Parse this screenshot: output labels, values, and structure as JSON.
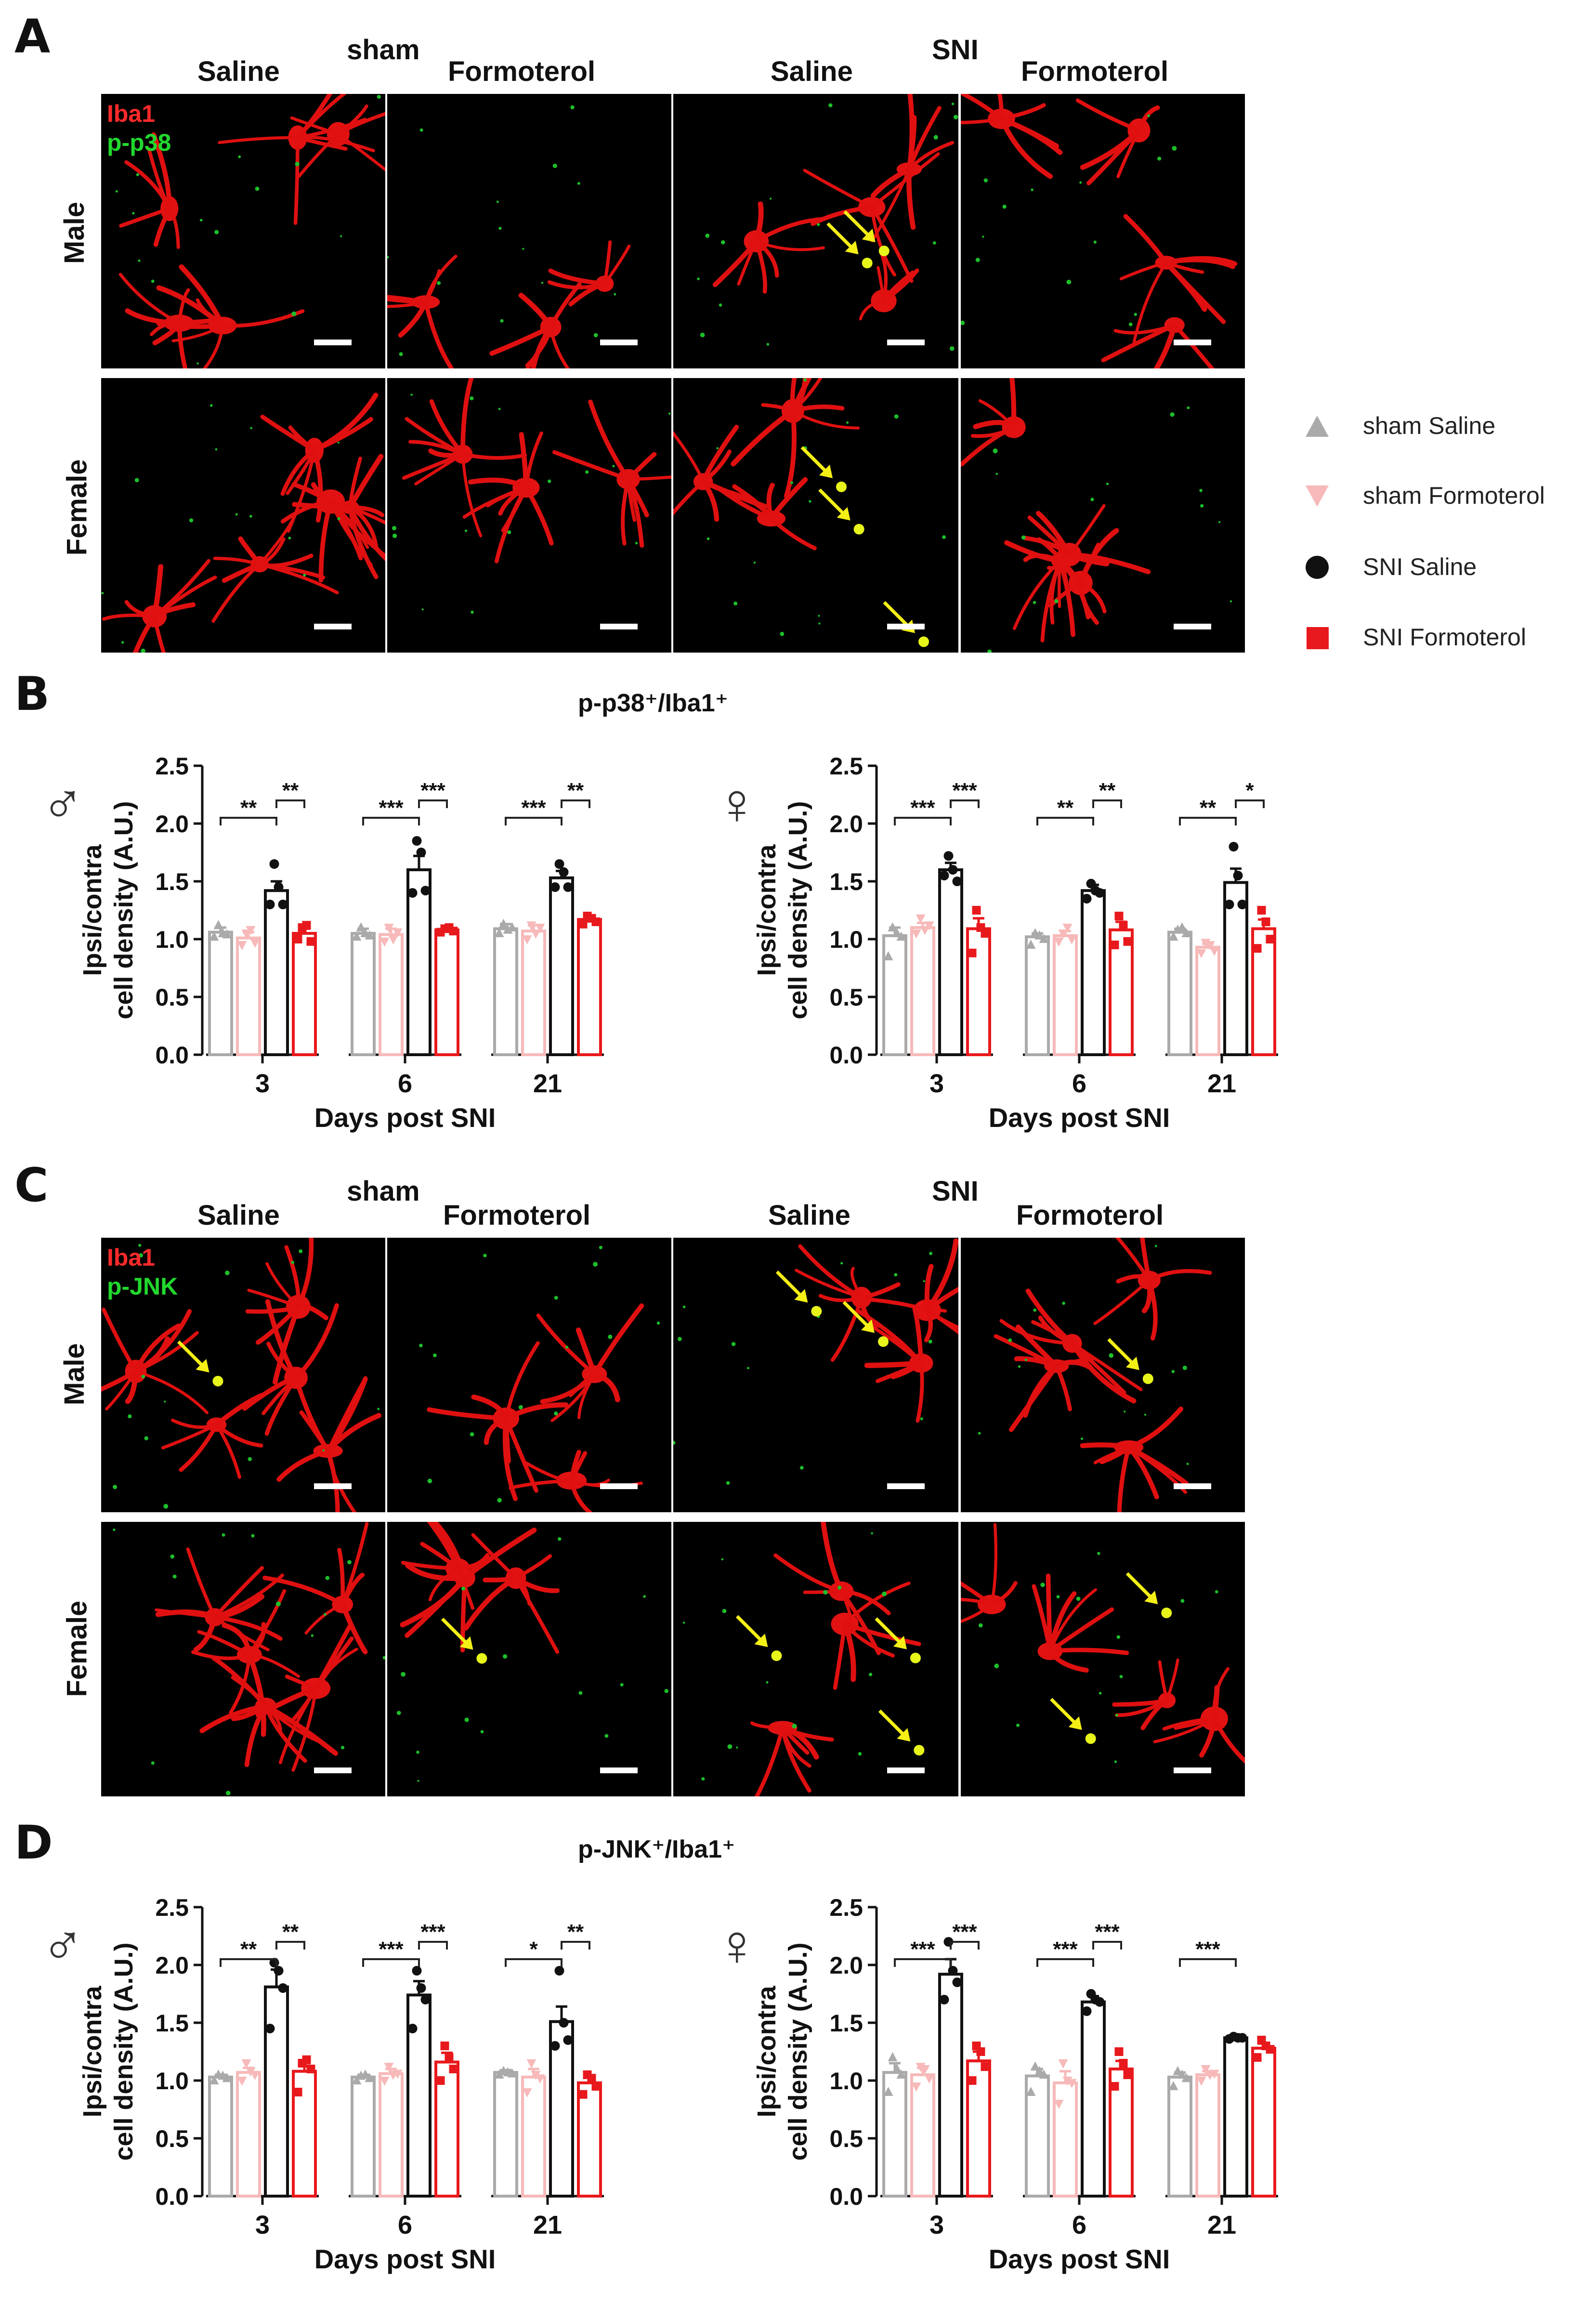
{
  "panels": {
    "A": {
      "letter": "A",
      "group_sham": "sham",
      "group_sni": "SNI",
      "col_labels": [
        "Saline",
        "Formoterol",
        "Saline",
        "Formoterol"
      ],
      "row_labels": [
        "Male",
        "Female"
      ],
      "stain_red": "Iba1",
      "stain_green": "p-p38"
    },
    "B": {
      "letter": "B",
      "title": "p-p38⁺/Iba1⁺"
    },
    "C": {
      "letter": "C",
      "group_sham": "sham",
      "group_sni": "SNI",
      "col_labels": [
        "Saline",
        "Formoterol",
        "Saline",
        "Formoterol"
      ],
      "row_labels": [
        "Male",
        "Female"
      ],
      "stain_red": "Iba1",
      "stain_green": "p-JNK"
    },
    "D": {
      "letter": "D",
      "title": "p-JNK⁺/Iba1⁺"
    }
  },
  "legend": {
    "items": [
      {
        "label": "sham Saline",
        "color": "#aaaaaa",
        "marker": "triangle-up"
      },
      {
        "label": "sham Formoterol",
        "color": "#f7b9b9",
        "marker": "triangle-down"
      },
      {
        "label": "SNI Saline",
        "color": "#111111",
        "marker": "circle"
      },
      {
        "label": "SNI Formoterol",
        "color": "#e8191c",
        "marker": "square"
      }
    ]
  },
  "chart_data": [
    {
      "id": "B-male",
      "type": "bar",
      "sex_symbol": "♂",
      "ylabel_line1": "Ipsi/contra",
      "ylabel_line2": "cell density (A.U.)",
      "xlabel": "Days post SNI",
      "ylim": [
        0,
        2.5
      ],
      "yticks": [
        "0.0",
        "0.5",
        "1.0",
        "1.5",
        "2.0",
        "2.5"
      ],
      "categories": [
        "3",
        "6",
        "21"
      ],
      "series": [
        {
          "name": "sham Saline",
          "values": [
            1.06,
            1.05,
            1.09
          ],
          "sem": [
            0.04,
            0.04,
            0.04
          ],
          "points": [
            [
              1.02,
              1.12,
              1.05,
              1.04
            ],
            [
              1.02,
              1.1,
              1.05,
              1.03
            ],
            [
              1.05,
              1.13,
              1.08,
              1.1
            ]
          ]
        },
        {
          "name": "sham Formoterol",
          "values": [
            1.01,
            1.04,
            1.07
          ],
          "sem": [
            0.05,
            0.05,
            0.05
          ],
          "points": [
            [
              0.95,
              1.05,
              1.08,
              0.97
            ],
            [
              0.98,
              1.1,
              1.0,
              1.06
            ],
            [
              1.0,
              1.12,
              1.05,
              1.1
            ]
          ]
        },
        {
          "name": "SNI Saline",
          "values": [
            1.42,
            1.6,
            1.53
          ],
          "sem": [
            0.08,
            0.12,
            0.06
          ],
          "points": [
            [
              1.3,
              1.65,
              1.45,
              1.3
            ],
            [
              1.4,
              1.85,
              1.75,
              1.42
            ],
            [
              1.45,
              1.65,
              1.58,
              1.45
            ]
          ]
        },
        {
          "name": "SNI Formoterol",
          "values": [
            1.05,
            1.08,
            1.17
          ],
          "sem": [
            0.04,
            0.02,
            0.03
          ],
          "points": [
            [
              1.0,
              1.1,
              1.12,
              0.98
            ],
            [
              1.06,
              1.09,
              1.1,
              1.07
            ],
            [
              1.13,
              1.2,
              1.18,
              1.15
            ]
          ]
        }
      ],
      "significance": [
        {
          "cat": 0,
          "from": 0,
          "to": 2,
          "label": "**"
        },
        {
          "cat": 0,
          "from": 2,
          "to": 3,
          "label": "**"
        },
        {
          "cat": 1,
          "from": 0,
          "to": 2,
          "label": "***"
        },
        {
          "cat": 1,
          "from": 2,
          "to": 3,
          "label": "***"
        },
        {
          "cat": 2,
          "from": 0,
          "to": 2,
          "label": "***"
        },
        {
          "cat": 2,
          "from": 2,
          "to": 3,
          "label": "**"
        }
      ]
    },
    {
      "id": "B-female",
      "type": "bar",
      "sex_symbol": "♀",
      "ylabel_line1": "Ipsi/contra",
      "ylabel_line2": "cell density (A.U.)",
      "xlabel": "Days post SNI",
      "ylim": [
        0,
        2.5
      ],
      "yticks": [
        "0.0",
        "0.5",
        "1.0",
        "1.5",
        "2.0",
        "2.5"
      ],
      "categories": [
        "3",
        "6",
        "21"
      ],
      "series": [
        {
          "name": "sham Saline",
          "values": [
            1.03,
            1.02,
            1.06
          ],
          "sem": [
            0.07,
            0.03,
            0.03
          ],
          "points": [
            [
              0.85,
              1.1,
              1.05,
              1.02
            ],
            [
              0.95,
              1.05,
              1.03,
              1.0
            ],
            [
              1.02,
              1.08,
              1.1,
              1.05
            ]
          ]
        },
        {
          "name": "sham Formoterol",
          "values": [
            1.1,
            1.03,
            0.93
          ],
          "sem": [
            0.04,
            0.04,
            0.03
          ],
          "points": [
            [
              1.05,
              1.18,
              1.08,
              1.12
            ],
            [
              0.98,
              1.05,
              1.1,
              1.0
            ],
            [
              0.88,
              0.97,
              0.95,
              0.9
            ]
          ]
        },
        {
          "name": "SNI Saline",
          "values": [
            1.6,
            1.42,
            1.49
          ],
          "sem": [
            0.06,
            0.05,
            0.12
          ],
          "points": [
            [
              1.55,
              1.72,
              1.6,
              1.5
            ],
            [
              1.35,
              1.48,
              1.42,
              1.4
            ],
            [
              1.3,
              1.8,
              1.55,
              1.3
            ]
          ]
        },
        {
          "name": "SNI Formoterol",
          "values": [
            1.09,
            1.08,
            1.09
          ],
          "sem": [
            0.09,
            0.07,
            0.08
          ],
          "points": [
            [
              0.88,
              1.25,
              1.1,
              1.05
            ],
            [
              0.95,
              1.2,
              1.12,
              0.98
            ],
            [
              0.92,
              1.25,
              1.15,
              1.0
            ]
          ]
        }
      ],
      "significance": [
        {
          "cat": 0,
          "from": 0,
          "to": 2,
          "label": "***"
        },
        {
          "cat": 0,
          "from": 2,
          "to": 3,
          "label": "***"
        },
        {
          "cat": 1,
          "from": 0,
          "to": 2,
          "label": "**"
        },
        {
          "cat": 1,
          "from": 2,
          "to": 3,
          "label": "**"
        },
        {
          "cat": 2,
          "from": 0,
          "to": 2,
          "label": "**"
        },
        {
          "cat": 2,
          "from": 2,
          "to": 3,
          "label": "*"
        }
      ]
    },
    {
      "id": "D-male",
      "type": "bar",
      "sex_symbol": "♂",
      "ylabel_line1": "Ipsi/contra",
      "ylabel_line2": "cell density (A.U.)",
      "xlabel": "Days post SNI",
      "ylim": [
        0,
        2.5
      ],
      "yticks": [
        "0.0",
        "0.5",
        "1.0",
        "1.5",
        "2.0",
        "2.5"
      ],
      "categories": [
        "3",
        "6",
        "21"
      ],
      "series": [
        {
          "name": "sham Saline",
          "values": [
            1.03,
            1.03,
            1.07
          ],
          "sem": [
            0.02,
            0.02,
            0.02
          ],
          "points": [
            [
              1.0,
              1.05,
              1.04,
              1.02
            ],
            [
              1.0,
              1.04,
              1.05,
              1.02
            ],
            [
              1.05,
              1.08,
              1.07,
              1.06
            ]
          ]
        },
        {
          "name": "sham Formoterol",
          "values": [
            1.07,
            1.06,
            1.03
          ],
          "sem": [
            0.04,
            0.04,
            0.07
          ],
          "points": [
            [
              1.0,
              1.15,
              1.08,
              1.05
            ],
            [
              1.0,
              1.12,
              1.05,
              1.06
            ],
            [
              0.9,
              1.15,
              1.05,
              1.02
            ]
          ]
        },
        {
          "name": "SNI Saline",
          "values": [
            1.81,
            1.74,
            1.51
          ],
          "sem": [
            0.15,
            0.12,
            0.13
          ],
          "points": [
            [
              1.45,
              2.02,
              1.95,
              1.8
            ],
            [
              1.45,
              1.95,
              1.8,
              1.7
            ],
            [
              1.3,
              1.95,
              1.5,
              1.35
            ]
          ]
        },
        {
          "name": "SNI Formoterol",
          "values": [
            1.08,
            1.16,
            0.98
          ],
          "sem": [
            0.07,
            0.08,
            0.05
          ],
          "points": [
            [
              0.9,
              1.15,
              1.18,
              1.1
            ],
            [
              1.0,
              1.3,
              1.2,
              1.1
            ],
            [
              0.88,
              1.05,
              1.02,
              0.95
            ]
          ]
        }
      ],
      "significance": [
        {
          "cat": 0,
          "from": 0,
          "to": 2,
          "label": "**"
        },
        {
          "cat": 0,
          "from": 2,
          "to": 3,
          "label": "**"
        },
        {
          "cat": 1,
          "from": 0,
          "to": 2,
          "label": "***"
        },
        {
          "cat": 1,
          "from": 2,
          "to": 3,
          "label": "***"
        },
        {
          "cat": 2,
          "from": 0,
          "to": 2,
          "label": "*"
        },
        {
          "cat": 2,
          "from": 2,
          "to": 3,
          "label": "**"
        }
      ]
    },
    {
      "id": "D-female",
      "type": "bar",
      "sex_symbol": "♀",
      "ylabel_line1": "Ipsi/contra",
      "ylabel_line2": "cell density (A.U.)",
      "xlabel": "Days post SNI",
      "ylim": [
        0,
        2.5
      ],
      "yticks": [
        "0.0",
        "0.5",
        "1.0",
        "1.5",
        "2.0",
        "2.5"
      ],
      "categories": [
        "3",
        "6",
        "21"
      ],
      "series": [
        {
          "name": "sham Saline",
          "values": [
            1.07,
            1.04,
            1.03
          ],
          "sem": [
            0.08,
            0.06,
            0.04
          ],
          "points": [
            [
              0.9,
              1.2,
              1.1,
              1.05
            ],
            [
              0.9,
              1.12,
              1.08,
              1.05
            ],
            [
              0.95,
              1.08,
              1.05,
              1.02
            ]
          ]
        },
        {
          "name": "sham Formoterol",
          "values": [
            1.05,
            0.98,
            1.05
          ],
          "sem": [
            0.06,
            0.1,
            0.03
          ],
          "points": [
            [
              0.95,
              1.12,
              1.1,
              1.02
            ],
            [
              0.8,
              1.15,
              1.0,
              0.98
            ],
            [
              1.0,
              1.1,
              1.05,
              1.06
            ]
          ]
        },
        {
          "name": "SNI Saline",
          "values": [
            1.92,
            1.68,
            1.37
          ],
          "sem": [
            0.13,
            0.05,
            0.01
          ],
          "points": [
            [
              1.7,
              2.2,
              1.95,
              1.85
            ],
            [
              1.6,
              1.75,
              1.7,
              1.68
            ],
            [
              1.36,
              1.38,
              1.37,
              1.37
            ]
          ]
        },
        {
          "name": "SNI Formoterol",
          "values": [
            1.17,
            1.1,
            1.28
          ],
          "sem": [
            0.08,
            0.07,
            0.04
          ],
          "points": [
            [
              1.0,
              1.3,
              1.25,
              1.12
            ],
            [
              0.95,
              1.25,
              1.15,
              1.05
            ],
            [
              1.2,
              1.35,
              1.3,
              1.27
            ]
          ]
        }
      ],
      "significance": [
        {
          "cat": 0,
          "from": 0,
          "to": 2,
          "label": "***"
        },
        {
          "cat": 0,
          "from": 2,
          "to": 3,
          "label": "***"
        },
        {
          "cat": 1,
          "from": 0,
          "to": 2,
          "label": "***"
        },
        {
          "cat": 1,
          "from": 2,
          "to": 3,
          "label": "***"
        },
        {
          "cat": 2,
          "from": 0,
          "to": 2,
          "label": "***"
        }
      ]
    }
  ]
}
